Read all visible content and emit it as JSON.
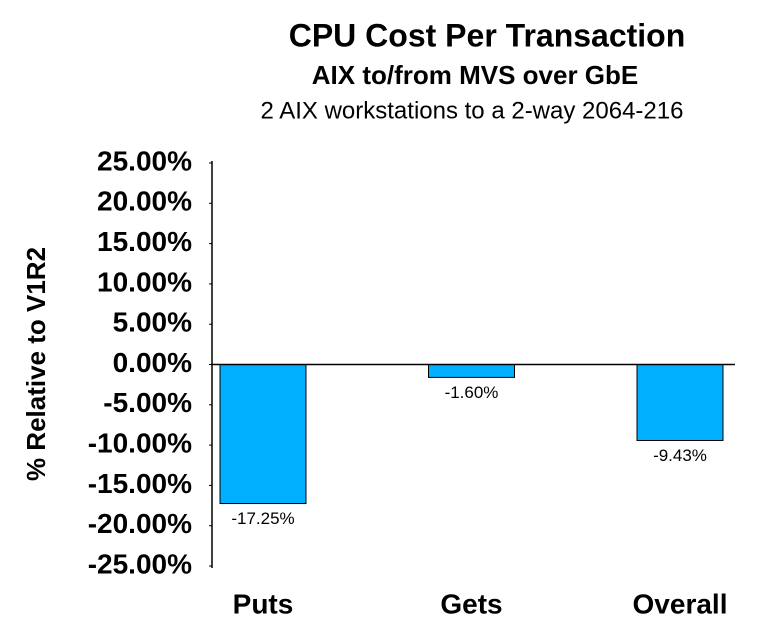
{
  "chart_data": {
    "type": "bar",
    "title": "CPU Cost Per Transaction",
    "subtitle": "AIX to/from MVS over GbE",
    "subsubtitle": "2 AIX workstations to a 2-way 2064-216",
    "y_label": "% Relative to V1R2",
    "categories": [
      "Puts",
      "Gets",
      "Overall"
    ],
    "values": [
      -17.25,
      -1.6,
      -9.43
    ],
    "value_labels": [
      "-17.25%",
      "-1.60%",
      "-9.43%"
    ],
    "color": "#00b0ff",
    "ylim": [
      -25,
      25
    ],
    "yticks": [
      {
        "value": 25,
        "label": "25.00%"
      },
      {
        "value": 20,
        "label": "20.00%"
      },
      {
        "value": 15,
        "label": "15.00%"
      },
      {
        "value": 10,
        "label": "10.00%"
      },
      {
        "value": 5,
        "label": "5.00%"
      },
      {
        "value": 0,
        "label": "0.00%"
      },
      {
        "value": -5,
        "label": "-5.00%"
      },
      {
        "value": -10,
        "label": "-10.00%"
      },
      {
        "value": -15,
        "label": "-15.00%"
      },
      {
        "value": -20,
        "label": "-20.00%"
      },
      {
        "value": -25,
        "label": "-25.00%"
      }
    ],
    "grid": false
  }
}
